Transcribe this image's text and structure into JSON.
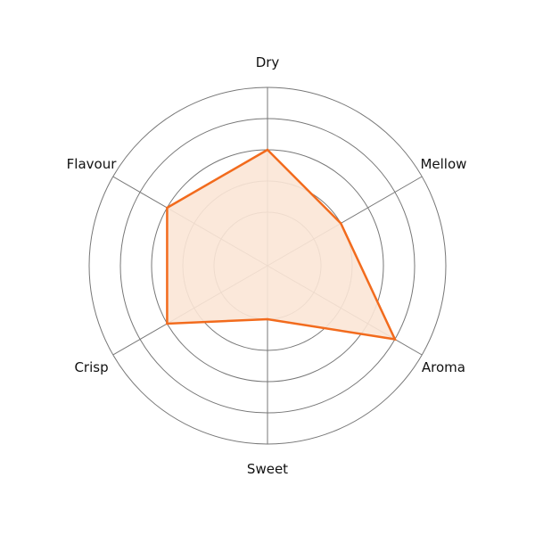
{
  "chart_data": {
    "type": "radar",
    "categories": [
      "Dry",
      "Mellow",
      "Aroma",
      "Sweet",
      "Crisp",
      "Flavour"
    ],
    "series": [
      {
        "values": [
          3,
          2,
          4,
          1,
          3,
          3
        ]
      }
    ],
    "rings": [
      1,
      2,
      3,
      4,
      5
    ],
    "grid": true,
    "colors": {
      "line": "#f26b1d",
      "fill": "#fbe5d6",
      "grid": "#777777"
    }
  }
}
